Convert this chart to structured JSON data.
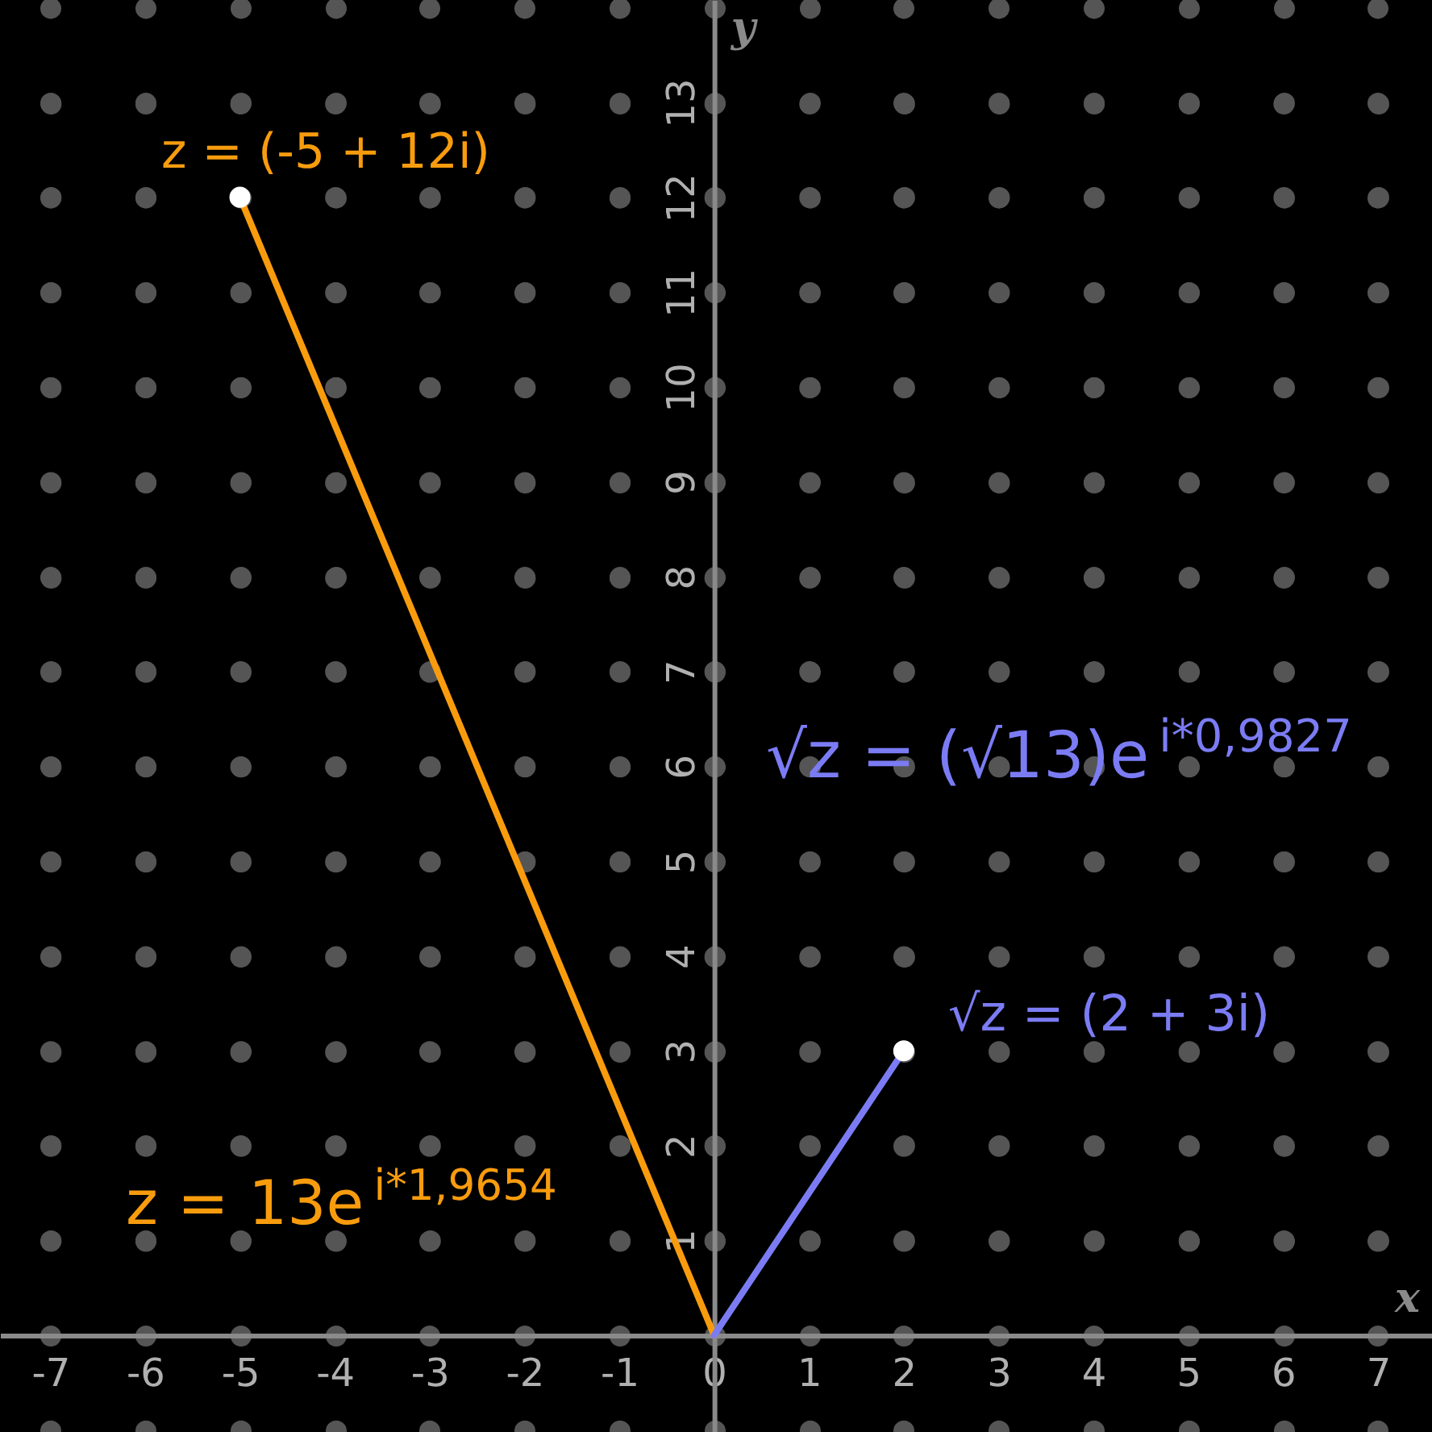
{
  "chart_data": {
    "type": "line",
    "xlabel": "x",
    "ylabel": "y",
    "xlim": [
      -7.53,
      7.57
    ],
    "ylim": [
      -1.02,
      14.08
    ],
    "xticks": [
      -7,
      -6,
      -5,
      -4,
      -3,
      -2,
      -1,
      0,
      1,
      2,
      3,
      4,
      5,
      6,
      7
    ],
    "yticks": [
      1,
      2,
      3,
      4,
      5,
      6,
      7,
      8,
      9,
      10,
      11,
      12,
      13
    ],
    "grid": true,
    "series": [
      {
        "color": "#f89c0e",
        "x": [
          0,
          -5
        ],
        "values": [
          0,
          12
        ]
      },
      {
        "color": "#7b7cf4",
        "x": [
          0,
          2
        ],
        "values": [
          0,
          3
        ]
      },
      {
        "type": "scatter",
        "color": "#ffffff",
        "x": [
          -5,
          2
        ],
        "values": [
          12,
          3
        ]
      }
    ],
    "annotations": [
      "z = (-5 + 12i)",
      "z = 13e$^{i*1,9654}$",
      "√z = (√13)e$^{i*0,9827}$",
      "√z = (2 + 3i)"
    ]
  }
}
